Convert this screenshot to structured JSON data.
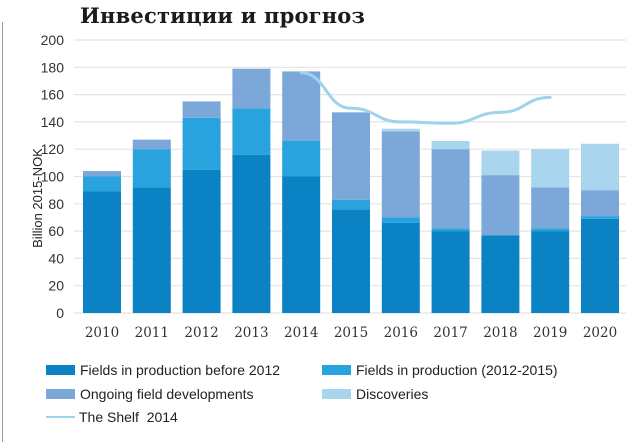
{
  "title": "Инвестиции и прогноз",
  "colors": {
    "fields_before_2012": "#0a82c4",
    "fields_2012_2015": "#29a3dd",
    "ongoing": "#7ba8d8",
    "discoveries": "#a9d5ee",
    "shelf_line": "#9fd2ec",
    "grid": "#e4e4e4"
  },
  "chart_data": {
    "type": "bar",
    "stacked": true,
    "title": "Инвестиции и прогноз",
    "xlabel": "",
    "ylabel": "Billion 2015-NOK",
    "ylim": [
      0,
      200
    ],
    "yticks": [
      "0",
      "20",
      "40",
      "60",
      "80",
      "100",
      "120",
      "140",
      "160",
      "180",
      "200"
    ],
    "grid": true,
    "legend_position": "bottom",
    "categories": [
      "2010",
      "2011",
      "2012",
      "2013",
      "2014",
      "2015",
      "2016",
      "2017",
      "2018",
      "2019",
      "2020"
    ],
    "series": [
      {
        "name": "Fields in production before 2012",
        "color_key": "fields_before_2012",
        "values": [
          89,
          92,
          105,
          116,
          100,
          76,
          66,
          60,
          57,
          60,
          69
        ]
      },
      {
        "name": "Fields in production (2012-2015)",
        "color_key": "fields_2012_2015",
        "values": [
          11,
          28,
          38,
          34,
          26,
          7,
          4,
          2,
          0,
          2,
          2
        ]
      },
      {
        "name": "Ongoing field developments",
        "color_key": "ongoing",
        "values": [
          4,
          7,
          12,
          29,
          51,
          64,
          63,
          58,
          44,
          30,
          19
        ]
      },
      {
        "name": "Discoveries",
        "color_key": "discoveries",
        "values": [
          0,
          0,
          0,
          0,
          0,
          0,
          2,
          6,
          18,
          28,
          34
        ]
      }
    ],
    "line_series": {
      "name": "The Shelf 2014",
      "color_key": "shelf_line",
      "x": [
        "2014",
        "2015",
        "2016",
        "2017",
        "2018",
        "2019"
      ],
      "values": [
        176,
        150,
        140,
        139,
        147,
        158
      ]
    }
  },
  "legend": [
    {
      "label": "Fields in production before 2012",
      "type": "box",
      "color_key": "fields_before_2012"
    },
    {
      "label": "Fields in production (2012-2015)",
      "type": "box",
      "color_key": "fields_2012_2015"
    },
    {
      "label": "Ongoing field developments",
      "type": "box",
      "color_key": "ongoing"
    },
    {
      "label": "Discoveries",
      "type": "box",
      "color_key": "discoveries"
    },
    {
      "label": "The Shelf  2014",
      "type": "line",
      "color_key": "shelf_line"
    }
  ]
}
